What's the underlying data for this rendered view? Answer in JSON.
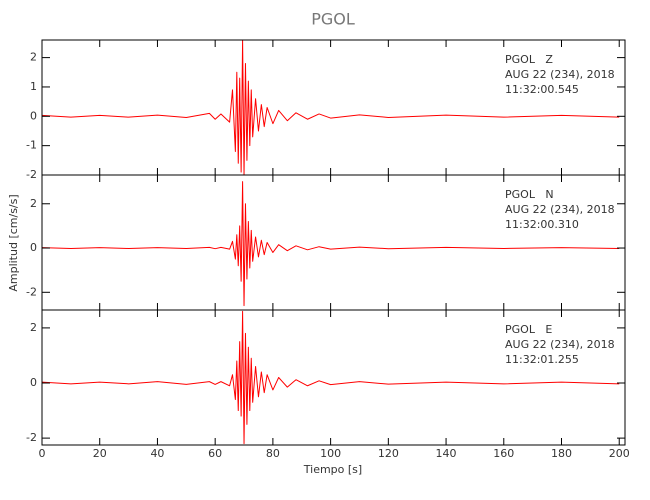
{
  "title": "PGOL",
  "ylabel": "Amplitud [cm/s/s]",
  "xlabel": "Tiempo [s]",
  "chart_data": [
    {
      "type": "line",
      "color": "#ff0000",
      "annotations": [
        "PGOL   Z",
        "AUG 22 (234), 2018",
        "11:32:00.545"
      ],
      "x": [
        0,
        10,
        20,
        30,
        40,
        50,
        58,
        60,
        62,
        65,
        66,
        67,
        67.5,
        68,
        68.5,
        69,
        69.5,
        70,
        70.5,
        71,
        71.5,
        72,
        72.5,
        73,
        74,
        75,
        76,
        77,
        78,
        80,
        82,
        85,
        88,
        92,
        96,
        100,
        110,
        120,
        140,
        160,
        180,
        200
      ],
      "values": [
        0.03,
        -0.03,
        0.03,
        -0.03,
        0.04,
        -0.04,
        0.1,
        -0.1,
        0.08,
        -0.2,
        0.9,
        -1.2,
        1.5,
        -1.6,
        1.3,
        -1.9,
        2.6,
        -2.0,
        1.8,
        -1.5,
        1.2,
        -1.0,
        0.9,
        -0.7,
        0.6,
        -0.5,
        0.4,
        -0.35,
        0.3,
        -0.25,
        0.2,
        -0.15,
        0.12,
        -0.1,
        0.08,
        -0.06,
        0.05,
        -0.04,
        0.04,
        -0.03,
        0.03,
        -0.03
      ],
      "xlim": [
        0,
        202
      ],
      "xticks": [
        0,
        20,
        40,
        60,
        80,
        100,
        120,
        140,
        160,
        180,
        200
      ],
      "ylim": [
        -2,
        2.6
      ],
      "yticks": [
        -2,
        -1,
        0,
        1,
        2
      ]
    },
    {
      "type": "line",
      "color": "#ff0000",
      "annotations": [
        "PGOL   N",
        "AUG 22 (234), 2018",
        "11:32:00.310"
      ],
      "x": [
        0,
        10,
        20,
        30,
        40,
        50,
        58,
        60,
        62,
        65,
        66,
        67,
        67.5,
        68,
        68.5,
        69,
        69.5,
        70,
        70.5,
        71,
        71.5,
        72,
        72.5,
        73,
        74,
        75,
        76,
        77,
        78,
        80,
        82,
        85,
        88,
        92,
        96,
        100,
        110,
        120,
        140,
        160,
        180,
        200
      ],
      "values": [
        0.02,
        -0.02,
        0.02,
        -0.02,
        0.02,
        -0.02,
        0.03,
        -0.03,
        0.03,
        -0.05,
        0.3,
        -0.5,
        0.6,
        -0.8,
        1.0,
        -1.5,
        3.0,
        -2.6,
        2.0,
        -1.4,
        1.2,
        -0.9,
        0.8,
        -0.6,
        0.5,
        -0.4,
        0.35,
        -0.3,
        0.25,
        -0.2,
        0.15,
        -0.12,
        0.1,
        -0.08,
        0.06,
        -0.05,
        0.04,
        -0.03,
        0.03,
        -0.02,
        0.02,
        -0.02
      ],
      "xlim": [
        0,
        202
      ],
      "xticks": [
        0,
        20,
        40,
        60,
        80,
        100,
        120,
        140,
        160,
        180,
        200
      ],
      "ylim": [
        -2.8,
        3.3
      ],
      "yticks": [
        -2,
        0,
        2
      ]
    },
    {
      "type": "line",
      "color": "#ff0000",
      "annotations": [
        "PGOL   E",
        "AUG 22 (234), 2018",
        "11:32:01.255"
      ],
      "x": [
        0,
        10,
        20,
        30,
        40,
        50,
        58,
        60,
        62,
        65,
        66,
        67,
        67.5,
        68,
        68.5,
        69,
        69.5,
        70,
        70.5,
        71,
        71.5,
        72,
        72.5,
        73,
        74,
        75,
        76,
        77,
        78,
        80,
        82,
        85,
        88,
        92,
        96,
        100,
        110,
        120,
        140,
        160,
        180,
        200
      ],
      "values": [
        0.03,
        -0.03,
        0.03,
        -0.03,
        0.05,
        -0.05,
        0.05,
        -0.05,
        0.05,
        -0.1,
        0.3,
        -0.6,
        0.8,
        -1.0,
        1.5,
        -1.2,
        2.6,
        -2.2,
        1.8,
        -1.5,
        1.3,
        -1.0,
        0.9,
        -0.7,
        0.6,
        -0.5,
        0.4,
        -0.35,
        0.3,
        -0.25,
        0.2,
        -0.15,
        0.12,
        -0.1,
        0.08,
        -0.06,
        0.05,
        -0.04,
        0.03,
        -0.03,
        0.03,
        -0.03
      ],
      "xlim": [
        0,
        202
      ],
      "xticks": [
        0,
        20,
        40,
        60,
        80,
        100,
        120,
        140,
        160,
        180,
        200
      ],
      "ylim": [
        -2.25,
        2.65
      ],
      "yticks": [
        -2,
        0,
        2
      ]
    }
  ]
}
